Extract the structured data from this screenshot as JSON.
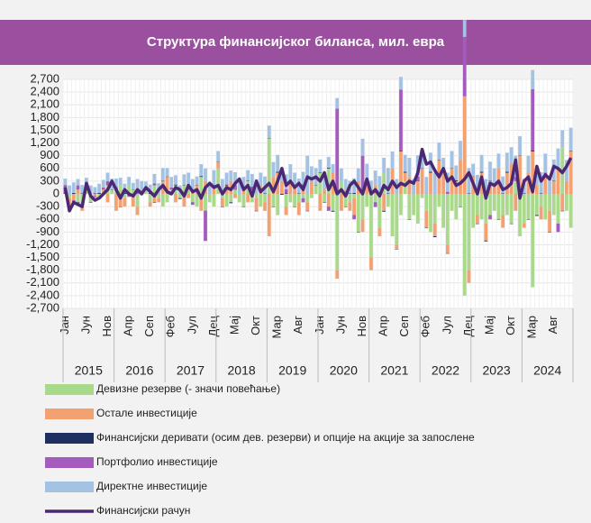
{
  "chart_data": {
    "type": "bar",
    "title": "Структура финансијског биланса, мил. евра",
    "categories": [
      "Јан",
      null,
      null,
      null,
      null,
      "Јун",
      null,
      null,
      null,
      null,
      "Нов",
      null,
      null,
      null,
      null,
      "Апр",
      null,
      null,
      null,
      null,
      "Сеп",
      null,
      null,
      null,
      null,
      "Феб",
      null,
      null,
      null,
      null,
      "Јул",
      null,
      null,
      null,
      null,
      "Дец",
      null,
      null,
      null,
      null,
      "Мај",
      null,
      null,
      null,
      null,
      "Окт",
      null,
      null,
      null,
      null,
      "Мар",
      null,
      null,
      null,
      null,
      "Авг",
      null,
      null,
      null,
      null,
      "Јан",
      null,
      null,
      null,
      null,
      "Јун",
      null,
      null,
      null,
      null,
      "Нов",
      null,
      null,
      null,
      null,
      "Апр",
      null,
      null,
      null,
      null,
      "Сеп",
      null,
      null,
      null,
      null,
      "Феб",
      null,
      null,
      null,
      null,
      "Јул",
      null,
      null,
      null,
      null,
      "Дец",
      null,
      null,
      null,
      null,
      "Мај",
      null,
      null,
      null,
      null,
      "Окт",
      null,
      null,
      null,
      null,
      "Мар",
      null,
      null,
      null,
      null,
      "Авг",
      null,
      null,
      null,
      null
    ],
    "years": [
      "2015",
      "2016",
      "2017",
      "2018",
      "2019",
      "2020",
      "2021",
      "2022",
      "2023",
      "2024"
    ],
    "ylim": [
      -2700,
      2700
    ],
    "yticks": [
      {
        "value": 2700,
        "label": "2,700"
      },
      {
        "value": 2400,
        "label": "2,400"
      },
      {
        "value": 2100,
        "label": "2,100"
      },
      {
        "value": 1800,
        "label": "1,800"
      },
      {
        "value": 1500,
        "label": "1,500"
      },
      {
        "value": 1200,
        "label": "1,200"
      },
      900,
      600,
      300,
      0,
      -300,
      -600,
      -900,
      {
        "value": -1200,
        "label": "-1,200"
      },
      {
        "value": -1500,
        "label": "-1,500"
      },
      {
        "value": -1800,
        "label": "-1,800"
      },
      {
        "value": -2100,
        "label": "-2,100"
      },
      {
        "value": -2400,
        "label": "-2,400"
      },
      {
        "value": -2700,
        "label": "-2,700"
      }
    ],
    "series": [
      {
        "name": "Девизне резерве (- значи повећање)",
        "type": "bar",
        "color": "#a9d98b",
        "values": [
          0,
          -100,
          0,
          -200,
          -300,
          100,
          -200,
          0,
          -100,
          0,
          200,
          100,
          100,
          200,
          -100,
          200,
          100,
          -300,
          0,
          100,
          -200,
          200,
          -100,
          -300,
          -200,
          100,
          200,
          -100,
          200,
          100,
          -200,
          -300,
          400,
          -400,
          -200,
          -300,
          600,
          -100,
          -300,
          -200,
          100,
          -200,
          -300,
          300,
          -200,
          -100,
          -300,
          -200,
          1300,
          -300,
          -500,
          0,
          -300,
          -200,
          -300,
          -200,
          -100,
          -200,
          -100,
          200,
          500,
          -200,
          600,
          -400,
          -1800,
          300,
          -300,
          -200,
          -100,
          -900,
          -600,
          -300,
          -1500,
          -200,
          -800,
          500,
          -300,
          -1000,
          -1200,
          -500,
          300,
          -600,
          -500,
          -700,
          -100,
          -400,
          -900,
          -700,
          -300,
          -800,
          -1200,
          -400,
          -600,
          -300,
          -2400,
          -1800,
          -800,
          -500,
          -600,
          -700,
          -500,
          -400,
          -600,
          -500,
          -500,
          -700,
          300,
          -1000,
          -700,
          -600,
          -2200,
          -500,
          -300,
          -600,
          -400,
          -500,
          -700,
          1100,
          -400,
          -800
        ]
      },
      {
        "name": "Остале инвестиције",
        "type": "bar",
        "color": "#f4a172",
        "values": [
          0,
          -200,
          -150,
          100,
          -100,
          50,
          0,
          -50,
          0,
          100,
          -200,
          0,
          -400,
          -300,
          -200,
          0,
          -300,
          -200,
          100,
          0,
          -100,
          -200,
          -100,
          300,
          400,
          0,
          -200,
          0,
          -300,
          -100,
          100,
          200,
          -400,
          300,
          0,
          200,
          150,
          -200,
          200,
          300,
          -100,
          0,
          100,
          -200,
          100,
          -300,
          200,
          -200,
          -1000,
          400,
          500,
          300,
          -200,
          300,
          200,
          -300,
          200,
          -200,
          300,
          0,
          -400,
          100,
          -300,
          500,
          -200,
          -400,
          100,
          -200,
          -400,
          300,
          -300,
          200,
          -300,
          200,
          -200,
          -400,
          0,
          600,
          -100,
          1000,
          200,
          400,
          0,
          300,
          600,
          -400,
          500,
          -300,
          800,
          500,
          -200,
          600,
          300,
          800,
          2300,
          -300,
          400,
          -200,
          500,
          -400,
          300,
          200,
          600,
          -300,
          500,
          700,
          -400,
          900,
          -100,
          500,
          1000,
          200,
          -300,
          400,
          -500,
          300,
          600,
          -400,
          300,
          1000
        ]
      },
      {
        "name": "Финансијски деривати (осим дев. резерви) и опције на акције за запослене",
        "type": "bar",
        "color": "#1f2f5f",
        "values": [
          10,
          -10,
          20,
          -20,
          10,
          0,
          -10,
          10,
          20,
          -10,
          0,
          10,
          10,
          -10,
          20,
          -20,
          10,
          0,
          -10,
          10,
          20,
          -10,
          0,
          10,
          10,
          -10,
          20,
          -20,
          10,
          0,
          -10,
          10,
          20,
          -10,
          0,
          10,
          10,
          -10,
          20,
          -20,
          10,
          0,
          -10,
          10,
          20,
          -10,
          0,
          10,
          10,
          -10,
          20,
          -20,
          10,
          0,
          -10,
          10,
          20,
          -10,
          0,
          10,
          10,
          -10,
          20,
          -20,
          10,
          0,
          -10,
          10,
          20,
          -10,
          0,
          10,
          10,
          -10,
          20,
          -20,
          10,
          0,
          -10,
          10,
          20,
          -10,
          0,
          10,
          10,
          -10,
          20,
          -20,
          10,
          0,
          -10,
          10,
          20,
          -10,
          0,
          10,
          10,
          -10,
          20,
          -20,
          10,
          0,
          -10,
          10,
          20,
          -10,
          0,
          10,
          10,
          -10,
          20,
          -20,
          10,
          0,
          -10,
          10,
          20,
          -10,
          0,
          10
        ]
      },
      {
        "name": "Портфолио инвестиције",
        "type": "bar",
        "color": "#a55bbd",
        "values": [
          200,
          0,
          -50,
          100,
          0,
          50,
          0,
          -30,
          0,
          50,
          100,
          0,
          50,
          0,
          0,
          -50,
          0,
          100,
          0,
          0,
          0,
          50,
          0,
          0,
          0,
          50,
          0,
          0,
          0,
          100,
          -50,
          0,
          0,
          -700,
          0,
          0,
          0,
          50,
          0,
          0,
          100,
          0,
          0,
          0,
          50,
          0,
          0,
          0,
          0,
          0,
          0,
          0,
          100,
          0,
          0,
          0,
          -100,
          0,
          0,
          0,
          0,
          0,
          -100,
          0,
          2000,
          0,
          0,
          0,
          -100,
          0,
          900,
          0,
          0,
          -100,
          0,
          0,
          0,
          0,
          0,
          1450,
          0,
          0,
          0,
          100,
          0,
          0,
          0,
          0,
          0,
          0,
          50,
          0,
          0,
          0,
          1400,
          0,
          0,
          100,
          0,
          0,
          -100,
          0,
          0,
          0,
          0,
          0,
          100,
          0,
          0,
          0,
          1450,
          0,
          0,
          100,
          0,
          0,
          -200,
          0,
          0,
          0
        ]
      },
      {
        "name": "Директне инвестиције",
        "type": "bar",
        "color": "#a4c2e4",
        "values": [
          150,
          200,
          250,
          150,
          200,
          180,
          200,
          150,
          220,
          180,
          200,
          250,
          200,
          180,
          220,
          200,
          150,
          250,
          200,
          180,
          200,
          220,
          250,
          300,
          200,
          250,
          220,
          200,
          250,
          300,
          250,
          200,
          280,
          300,
          250,
          350,
          250,
          300,
          280,
          250,
          300,
          350,
          300,
          250,
          300,
          350,
          300,
          400,
          300,
          350,
          400,
          300,
          350,
          400,
          300,
          350,
          300,
          900,
          350,
          400,
          300,
          350,
          250,
          200,
          250,
          300,
          250,
          300,
          350,
          300,
          400,
          500,
          300,
          350,
          400,
          350,
          600,
          400,
          350,
          300,
          400,
          450,
          350,
          500,
          350,
          400,
          450,
          500,
          400,
          350,
          450,
          400,
          350,
          450,
          400,
          600,
          300,
          350,
          400,
          350,
          450,
          400,
          350,
          400,
          450,
          400,
          500,
          450,
          350,
          400,
          450,
          400,
          500,
          450,
          400,
          500,
          450,
          400,
          500,
          550
        ]
      },
      {
        "name": "Финансијски рачун",
        "type": "line",
        "color": "#4a2874",
        "values": [
          150,
          -400,
          -200,
          -250,
          -300,
          250,
          -50,
          -150,
          -100,
          0,
          100,
          300,
          100,
          -100,
          100,
          0,
          -50,
          100,
          0,
          150,
          50,
          -50,
          100,
          200,
          50,
          0,
          150,
          100,
          -50,
          200,
          50,
          100,
          -100,
          150,
          250,
          150,
          200,
          0,
          150,
          100,
          250,
          350,
          100,
          200,
          -50,
          300,
          50,
          150,
          250,
          50,
          300,
          600,
          200,
          300,
          150,
          250,
          100,
          400,
          350,
          400,
          300,
          500,
          100,
          300,
          0,
          100,
          -50,
          200,
          300,
          150,
          0,
          350,
          0,
          100,
          -50,
          200,
          100,
          300,
          150,
          250,
          200,
          300,
          250,
          500,
          1050,
          700,
          750,
          550,
          400,
          600,
          300,
          400,
          200,
          250,
          350,
          500,
          250,
          0,
          400,
          -100,
          250,
          200,
          300,
          100,
          150,
          250,
          800,
          -100,
          300,
          400,
          50,
          650,
          300,
          450,
          350,
          650,
          600,
          500,
          650,
          850
        ]
      }
    ]
  }
}
